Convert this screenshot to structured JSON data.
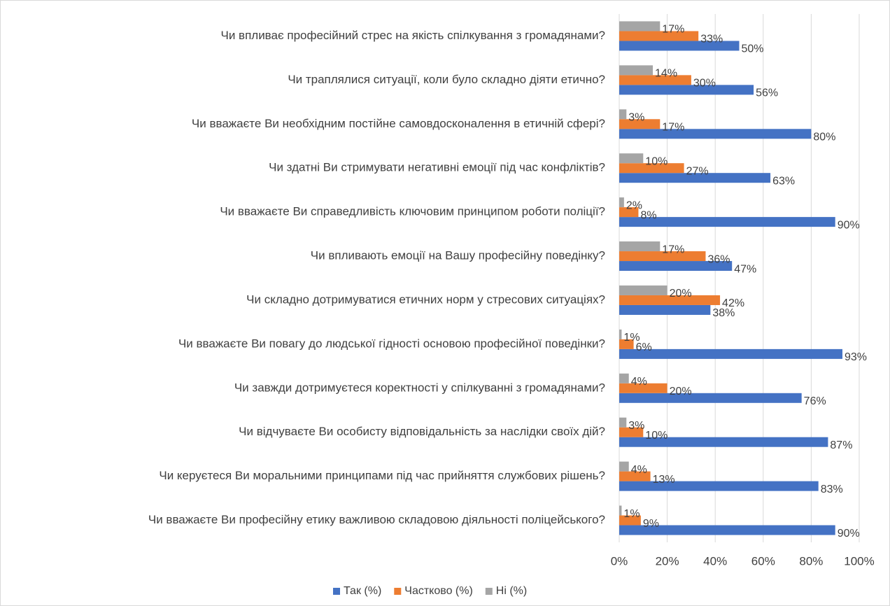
{
  "chart_data": {
    "type": "bar",
    "orientation": "horizontal",
    "categories": [
      "Чи впливає професійний стрес на якість спілкування з громадянами?",
      "Чи траплялися ситуації, коли було складно діяти етично?",
      "Чи вважаєте Ви необхідним постійне самовдосконалення в етичній сфері?",
      "Чи здатні Ви стримувати негативні емоції під час конфліктів?",
      "Чи вважаєте Ви справедливість ключовим принципом роботи поліції?",
      "Чи впливають емоції на Вашу професійну поведінку?",
      "Чи складно дотримуватися етичних норм у стресових ситуаціях?",
      "Чи вважаєте Ви повагу до людської гідності основою професійної поведінки?",
      "Чи завжди дотримуєтеся коректності у спілкуванні з громадянами?",
      "Чи відчуваєте Ви особисту відповідальність за наслідки своїх дій?",
      "Чи керуєтеся Ви моральними принципами під час прийняття службових рішень?",
      "Чи вважаєте Ви професійну етику важливою складовою діяльності поліцейського?"
    ],
    "series": [
      {
        "name": "Так (%)",
        "color": "#4472c4",
        "values": [
          50,
          56,
          80,
          63,
          90,
          47,
          38,
          93,
          76,
          87,
          83,
          90
        ],
        "value_labels": [
          "50%",
          "56%",
          "80%",
          "63%",
          "90%",
          "47%",
          "38%",
          "93%",
          "76%",
          "87%",
          "83%",
          "90%"
        ]
      },
      {
        "name": "Частково (%)",
        "color": "#ed7d31",
        "values": [
          33,
          30,
          17,
          27,
          8,
          36,
          42,
          6,
          20,
          10,
          13,
          9
        ],
        "value_labels": [
          "33%",
          "30%",
          "17%",
          "27%",
          "8%",
          "36%",
          "42%",
          "6%",
          "20%",
          "10%",
          "13%",
          "9%"
        ]
      },
      {
        "name": "Ні (%)",
        "color": "#a5a5a5",
        "values": [
          17,
          14,
          3,
          10,
          2,
          17,
          20,
          1,
          4,
          3,
          4,
          1
        ],
        "value_labels": [
          "17%",
          "14%",
          "3%",
          "10%",
          "2%",
          "17%",
          "20%",
          "1%",
          "4%",
          "3%",
          "4%",
          "1%"
        ]
      }
    ],
    "xlim": [
      0,
      100
    ],
    "xticks": [
      {
        "value": 0,
        "label": "0%"
      },
      {
        "value": 20,
        "label": "20%"
      },
      {
        "value": 40,
        "label": "40%"
      },
      {
        "value": 60,
        "label": "60%"
      },
      {
        "value": 80,
        "label": "80%"
      },
      {
        "value": 100,
        "label": "100%"
      }
    ],
    "grid": true,
    "legend": "bottom"
  }
}
